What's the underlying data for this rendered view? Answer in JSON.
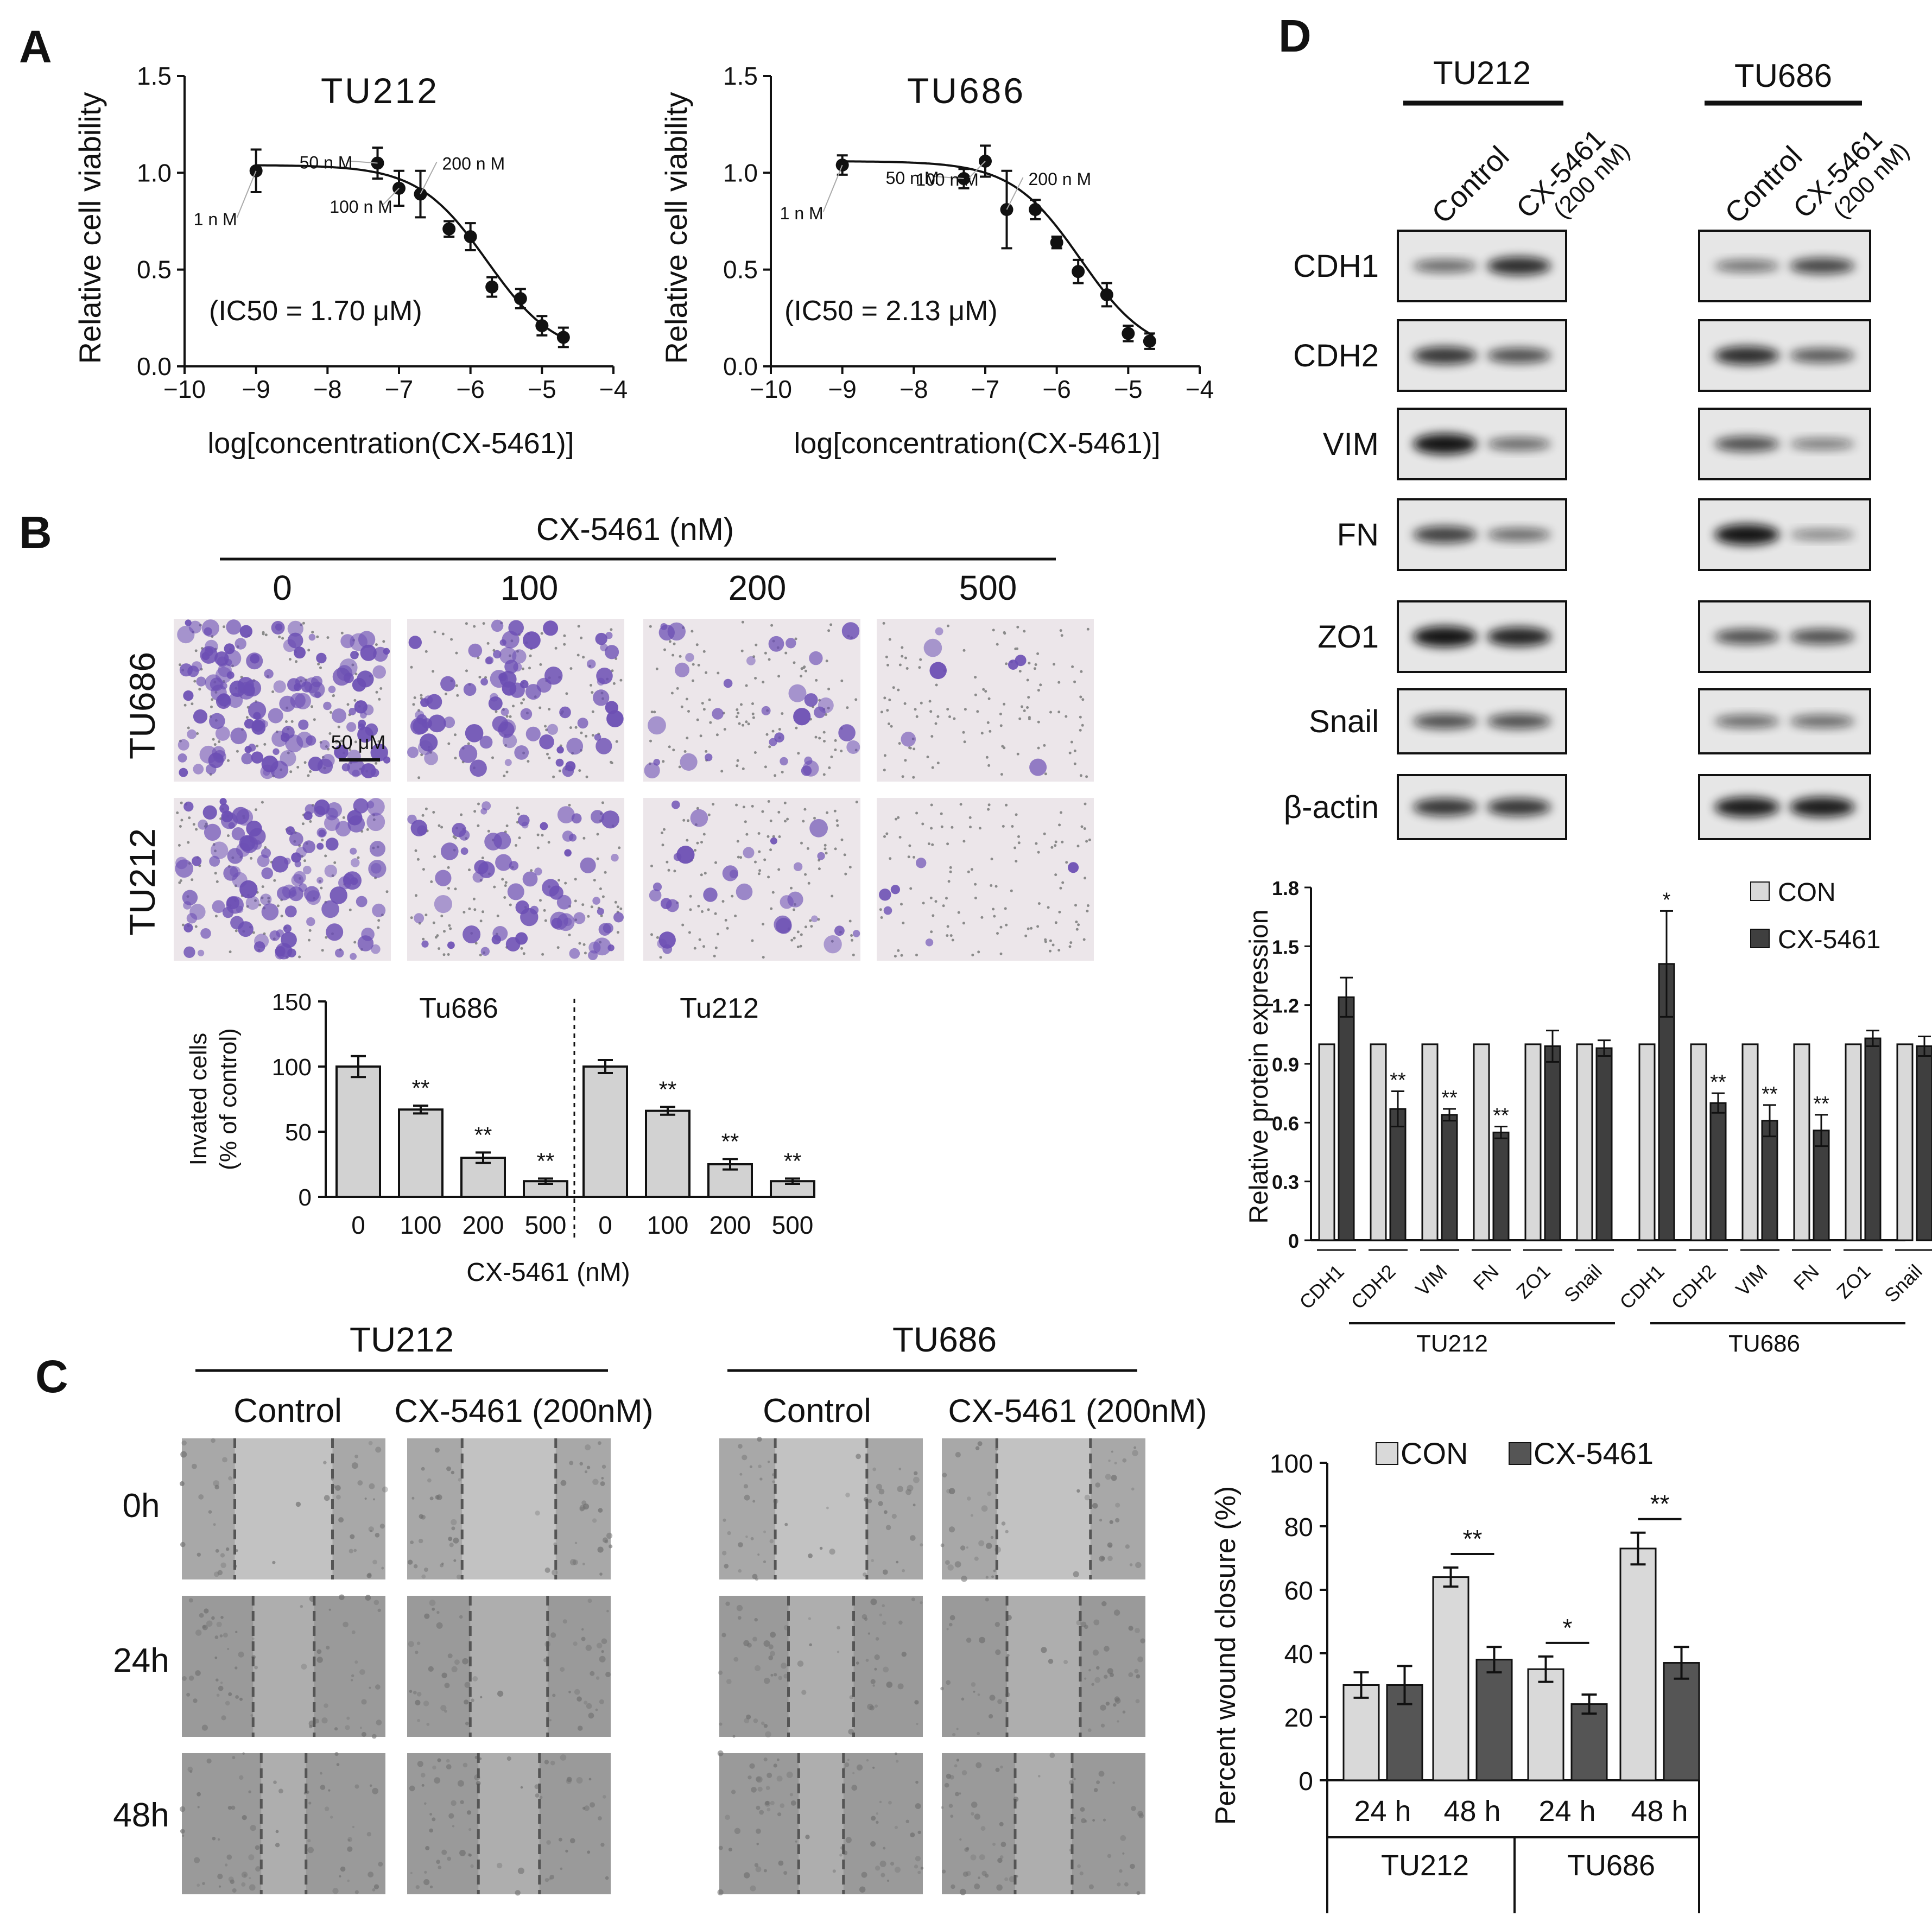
{
  "panels": {
    "A": "A",
    "B": "B",
    "C": "C",
    "D": "D"
  },
  "chart_data": [
    {
      "id": "A-TU212",
      "type": "scatter",
      "title": "TU212",
      "xlabel": "log[concentration(CX-5461)]",
      "ylabel": "Relative cell viability",
      "xlim": [
        -10,
        -4
      ],
      "ylim": [
        0,
        1.5
      ],
      "x_ticks": [
        "−10",
        "−9",
        "−8",
        "−7",
        "−6",
        "−5",
        "−4"
      ],
      "y_ticks": [
        "0.0",
        "0.5",
        "1.0",
        "1.5"
      ],
      "annotation": "(IC50 = 1.70 μM)",
      "points": [
        {
          "x": -9.0,
          "y": 1.01,
          "err": 0.11
        },
        {
          "x": -7.3,
          "y": 1.05,
          "err": 0.08
        },
        {
          "x": -7.0,
          "y": 0.92,
          "err": 0.09
        },
        {
          "x": -6.7,
          "y": 0.89,
          "err": 0.12
        },
        {
          "x": -6.3,
          "y": 0.71,
          "err": 0.04
        },
        {
          "x": -6.0,
          "y": 0.67,
          "err": 0.07
        },
        {
          "x": -5.7,
          "y": 0.41,
          "err": 0.05
        },
        {
          "x": -5.3,
          "y": 0.35,
          "err": 0.05
        },
        {
          "x": -5.0,
          "y": 0.21,
          "err": 0.05
        },
        {
          "x": -4.7,
          "y": 0.15,
          "err": 0.05
        }
      ],
      "fit_curve": {
        "top": 1.04,
        "bottom": 0.05,
        "logIC50": -5.77,
        "hill": 0.9
      },
      "point_labels": [
        {
          "text": "1 n M",
          "x": -9.0
        },
        {
          "text": "50 n M",
          "x": -7.3
        },
        {
          "text": "100 n M",
          "x": -7.0
        },
        {
          "text": "200 n M",
          "x": -6.7
        }
      ]
    },
    {
      "id": "A-TU686",
      "type": "scatter",
      "title": "TU686",
      "xlabel": "log[concentration(CX-5461)]",
      "ylabel": "Relative cell viability",
      "xlim": [
        -10,
        -4
      ],
      "ylim": [
        0,
        1.5
      ],
      "x_ticks": [
        "−10",
        "−9",
        "−8",
        "−7",
        "−6",
        "−5",
        "−4"
      ],
      "y_ticks": [
        "0.0",
        "0.5",
        "1.0",
        "1.5"
      ],
      "annotation": "(IC50 = 2.13 μM)",
      "points": [
        {
          "x": -9.0,
          "y": 1.04,
          "err": 0.05
        },
        {
          "x": -7.3,
          "y": 0.97,
          "err": 0.05
        },
        {
          "x": -7.0,
          "y": 1.06,
          "err": 0.08
        },
        {
          "x": -6.7,
          "y": 0.81,
          "err": 0.2
        },
        {
          "x": -6.3,
          "y": 0.81,
          "err": 0.05
        },
        {
          "x": -6.0,
          "y": 0.64,
          "err": 0.03
        },
        {
          "x": -5.7,
          "y": 0.49,
          "err": 0.06
        },
        {
          "x": -5.3,
          "y": 0.37,
          "err": 0.06
        },
        {
          "x": -5.0,
          "y": 0.17,
          "err": 0.04
        },
        {
          "x": -4.7,
          "y": 0.13,
          "err": 0.04
        }
      ],
      "fit_curve": {
        "top": 1.06,
        "bottom": 0.05,
        "logIC50": -5.67,
        "hill": 0.9
      },
      "point_labels": [
        {
          "text": "1 n M",
          "x": -9.0
        },
        {
          "text": "50 n M",
          "x": -7.3
        },
        {
          "text": "100 n M",
          "x": -7.0
        },
        {
          "text": "200 n M",
          "x": -6.7
        }
      ]
    },
    {
      "id": "B-invasion",
      "type": "bar",
      "ylabel_line1": "Invated cells",
      "ylabel_line2": "(% of control)",
      "xlabel": "CX-5461 (nM)",
      "ylim": [
        0,
        150
      ],
      "y_ticks": [
        "0",
        "50",
        "100",
        "150"
      ],
      "groups": [
        {
          "name": "Tu686",
          "categories": [
            "0",
            "100",
            "200",
            "500"
          ],
          "values": [
            100,
            67,
            30,
            12
          ],
          "errors": [
            8,
            3,
            4,
            2
          ],
          "sig": [
            "",
            "**",
            "**",
            "**"
          ]
        },
        {
          "name": "Tu212",
          "categories": [
            "0",
            "100",
            "200",
            "500"
          ],
          "values": [
            100,
            66,
            25,
            12
          ],
          "errors": [
            5,
            3,
            4,
            2
          ],
          "sig": [
            "",
            "**",
            "**",
            "**"
          ]
        }
      ]
    },
    {
      "id": "D-protein",
      "type": "bar",
      "ylabel": "Relative protein expression",
      "ylim": [
        0,
        1.8
      ],
      "y_ticks": [
        "0",
        "0.3",
        "0.6",
        "0.9",
        "1.2",
        "1.5",
        "1.8"
      ],
      "legend": [
        "CON",
        "CX-5461"
      ],
      "legend_position": "top-right",
      "categories": [
        "CDH1",
        "CDH2",
        "VIM",
        "FN",
        "ZO1",
        "Snail"
      ],
      "groups": [
        {
          "name": "TU212",
          "series": [
            {
              "name": "CON",
              "values": [
                1,
                1,
                1,
                1,
                1,
                1
              ]
            },
            {
              "name": "CX-5461",
              "values": [
                1.24,
                0.67,
                0.64,
                0.55,
                0.99,
                0.98
              ],
              "errors": [
                0.1,
                0.09,
                0.03,
                0.03,
                0.08,
                0.04
              ],
              "sig": [
                "",
                "**",
                "**",
                "**",
                "",
                ""
              ]
            }
          ]
        },
        {
          "name": "TU686",
          "series": [
            {
              "name": "CON",
              "values": [
                1,
                1,
                1,
                1,
                1,
                1
              ]
            },
            {
              "name": "CX-5461",
              "values": [
                1.41,
                0.7,
                0.61,
                0.56,
                1.03,
                0.99
              ],
              "errors": [
                0.27,
                0.05,
                0.08,
                0.08,
                0.04,
                0.05
              ],
              "sig": [
                "*",
                "**",
                "**",
                "**",
                "",
                ""
              ]
            }
          ]
        }
      ]
    },
    {
      "id": "C-wound",
      "type": "bar",
      "ylabel": "Percent wound closure (%)",
      "ylim": [
        0,
        100
      ],
      "y_ticks": [
        "0",
        "20",
        "40",
        "60",
        "80",
        "100"
      ],
      "legend": [
        "CON",
        "CX-5461"
      ],
      "legend_position": "top",
      "groups": [
        {
          "name": "TU212",
          "categories": [
            "24 h",
            "48 h"
          ],
          "series": [
            {
              "name": "CON",
              "values": [
                30,
                64
              ],
              "errors": [
                4,
                3
              ]
            },
            {
              "name": "CX-5461",
              "values": [
                30,
                38
              ],
              "errors": [
                6,
                4
              ]
            }
          ],
          "sig": [
            "",
            "**"
          ]
        },
        {
          "name": "TU686",
          "categories": [
            "24 h",
            "48 h"
          ],
          "series": [
            {
              "name": "CON",
              "values": [
                35,
                73
              ],
              "errors": [
                4,
                5
              ]
            },
            {
              "name": "CX-5461",
              "values": [
                24,
                37
              ],
              "errors": [
                3,
                5
              ]
            }
          ],
          "sig": [
            "*",
            "**"
          ]
        }
      ]
    }
  ],
  "panelB": {
    "header": "CX-5461 (nM)",
    "concentrations": [
      "0",
      "100",
      "200",
      "500"
    ],
    "rows": [
      "TU686",
      "TU212"
    ],
    "scale_bar": "50 μM"
  },
  "panelC": {
    "groups": [
      {
        "name": "TU212",
        "columns": [
          "Control",
          "CX-5461 (200nM)"
        ]
      },
      {
        "name": "TU686",
        "columns": [
          "Control",
          "CX-5461 (200nM)"
        ]
      }
    ],
    "rows": [
      "0h",
      "24h",
      "48h"
    ]
  },
  "panelD": {
    "groups": [
      {
        "name": "TU212",
        "columns": [
          "Control",
          "CX-5461",
          "(200 nM)"
        ]
      },
      {
        "name": "TU686",
        "columns": [
          "Control",
          "CX-5461",
          "(200 nM)"
        ]
      }
    ],
    "proteins": [
      "CDH1",
      "CDH2",
      "VIM",
      "FN",
      "ZO1",
      "Snail",
      "β-actin"
    ],
    "band_intensity": {
      "TU212": [
        [
          0.45,
          0.8
        ],
        [
          0.75,
          0.6
        ],
        [
          0.95,
          0.45
        ],
        [
          0.7,
          0.45
        ],
        [
          0.95,
          0.85
        ],
        [
          0.6,
          0.6
        ],
        [
          0.75,
          0.75
        ]
      ],
      "TU686": [
        [
          0.4,
          0.65
        ],
        [
          0.8,
          0.55
        ],
        [
          0.6,
          0.35
        ],
        [
          0.95,
          0.3
        ],
        [
          0.6,
          0.6
        ],
        [
          0.45,
          0.45
        ],
        [
          0.9,
          0.9
        ]
      ]
    }
  },
  "colors": {
    "con_bar": "#d9d9d9",
    "cx_bar": "#3f3f3f",
    "bar_B": "#d2d2d2",
    "crystal_violet": "#6c4fb4",
    "micro_bg": "#ece6ea",
    "wound_bg": "#9c9c9c",
    "blot_bg": "#e6e6e6"
  }
}
